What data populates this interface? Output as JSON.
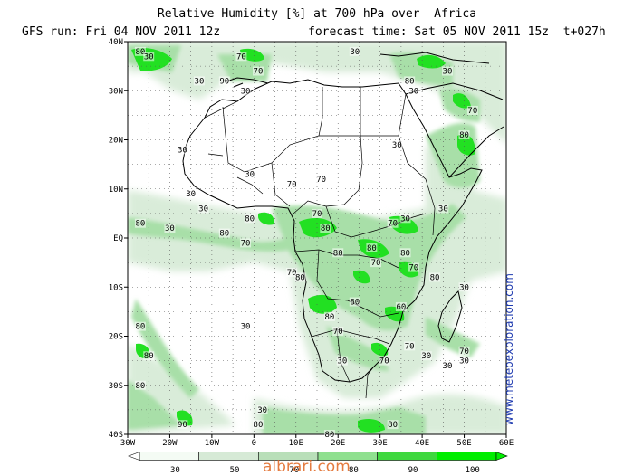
{
  "header": {
    "title": "Relative Humidity [%] at 700 hPa over  Africa",
    "run": "GFS run: Fri 04 NOV 2011 12z",
    "forecast": "forecast time: Sat 05 NOV 2011 15z  t+027h"
  },
  "axes": {
    "lon_labels": [
      "30W",
      "20W",
      "10W",
      "0",
      "10E",
      "20E",
      "30E",
      "40E",
      "50E",
      "60E"
    ],
    "lat_labels": [
      "40N",
      "30N",
      "20N",
      "10N",
      "EQ",
      "10S",
      "20S",
      "30S",
      "40S"
    ]
  },
  "colorbar": {
    "labels": [
      "30",
      "50",
      "70",
      "80",
      "90",
      "100"
    ],
    "colors": [
      "#f4fbf4",
      "#d6ead6",
      "#b9dfb9",
      "#8fe08f",
      "#3fd83f",
      "#00ee00"
    ]
  },
  "contour_labels": [
    {
      "text": "80",
      "lon": -27,
      "lat": 38
    },
    {
      "text": "30",
      "lon": -25,
      "lat": 37
    },
    {
      "text": "30",
      "lon": -13,
      "lat": 32
    },
    {
      "text": "70",
      "lon": -3,
      "lat": 37
    },
    {
      "text": "90",
      "lon": -7,
      "lat": 32
    },
    {
      "text": "30",
      "lon": -2,
      "lat": 30
    },
    {
      "text": "70",
      "lon": 1,
      "lat": 34
    },
    {
      "text": "30",
      "lon": 24,
      "lat": 38
    },
    {
      "text": "30",
      "lon": 38,
      "lat": 30
    },
    {
      "text": "80",
      "lon": 37,
      "lat": 32
    },
    {
      "text": "30",
      "lon": 46,
      "lat": 34
    },
    {
      "text": "70",
      "lon": 52,
      "lat": 26
    },
    {
      "text": "80",
      "lon": 50,
      "lat": 21
    },
    {
      "text": "30",
      "lon": 34,
      "lat": 19
    },
    {
      "text": "30",
      "lon": -17,
      "lat": 18
    },
    {
      "text": "30",
      "lon": -1,
      "lat": 13
    },
    {
      "text": "70",
      "lon": 16,
      "lat": 12
    },
    {
      "text": "70",
      "lon": 9,
      "lat": 11
    },
    {
      "text": "30",
      "lon": -12,
      "lat": 6
    },
    {
      "text": "30",
      "lon": -15,
      "lat": 9
    },
    {
      "text": "80",
      "lon": -1,
      "lat": 4
    },
    {
      "text": "80",
      "lon": -27,
      "lat": 3
    },
    {
      "text": "30",
      "lon": -20,
      "lat": 2
    },
    {
      "text": "80",
      "lon": -7,
      "lat": 1
    },
    {
      "text": "70",
      "lon": -2,
      "lat": -1
    },
    {
      "text": "70",
      "lon": 15,
      "lat": 5
    },
    {
      "text": "80",
      "lon": 17,
      "lat": 2
    },
    {
      "text": "80",
      "lon": 20,
      "lat": -3
    },
    {
      "text": "80",
      "lon": 28,
      "lat": -2
    },
    {
      "text": "70",
      "lon": 33,
      "lat": 3
    },
    {
      "text": "80",
      "lon": 36,
      "lat": -3
    },
    {
      "text": "70",
      "lon": 38,
      "lat": -6
    },
    {
      "text": "30",
      "lon": 45,
      "lat": 6
    },
    {
      "text": "30",
      "lon": 36,
      "lat": 4
    },
    {
      "text": "70",
      "lon": 29,
      "lat": -5
    },
    {
      "text": "70",
      "lon": 9,
      "lat": -7
    },
    {
      "text": "80",
      "lon": 11,
      "lat": -8
    },
    {
      "text": "80",
      "lon": 24,
      "lat": -13
    },
    {
      "text": "80",
      "lon": 18,
      "lat": -16
    },
    {
      "text": "70",
      "lon": 20,
      "lat": -19
    },
    {
      "text": "60",
      "lon": 35,
      "lat": -14
    },
    {
      "text": "80",
      "lon": 43,
      "lat": -8
    },
    {
      "text": "30",
      "lon": 50,
      "lat": -10
    },
    {
      "text": "80",
      "lon": -27,
      "lat": -18
    },
    {
      "text": "80",
      "lon": -25,
      "lat": -24
    },
    {
      "text": "30",
      "lon": -2,
      "lat": -18
    },
    {
      "text": "30",
      "lon": 21,
      "lat": -25
    },
    {
      "text": "70",
      "lon": 31,
      "lat": -25
    },
    {
      "text": "70",
      "lon": 37,
      "lat": -22
    },
    {
      "text": "30",
      "lon": 41,
      "lat": -24
    },
    {
      "text": "30",
      "lon": 46,
      "lat": -26
    },
    {
      "text": "70",
      "lon": 50,
      "lat": -23
    },
    {
      "text": "30",
      "lon": 50,
      "lat": -25
    },
    {
      "text": "80",
      "lon": -27,
      "lat": -30
    },
    {
      "text": "90",
      "lon": -17,
      "lat": -38
    },
    {
      "text": "30",
      "lon": 2,
      "lat": -35
    },
    {
      "text": "80",
      "lon": 1,
      "lat": -38
    },
    {
      "text": "80",
      "lon": 18,
      "lat": -40
    },
    {
      "text": "80",
      "lon": 33,
      "lat": -38
    }
  ],
  "site": "www.meteoexploration.com",
  "watermark": "albrari.com"
}
